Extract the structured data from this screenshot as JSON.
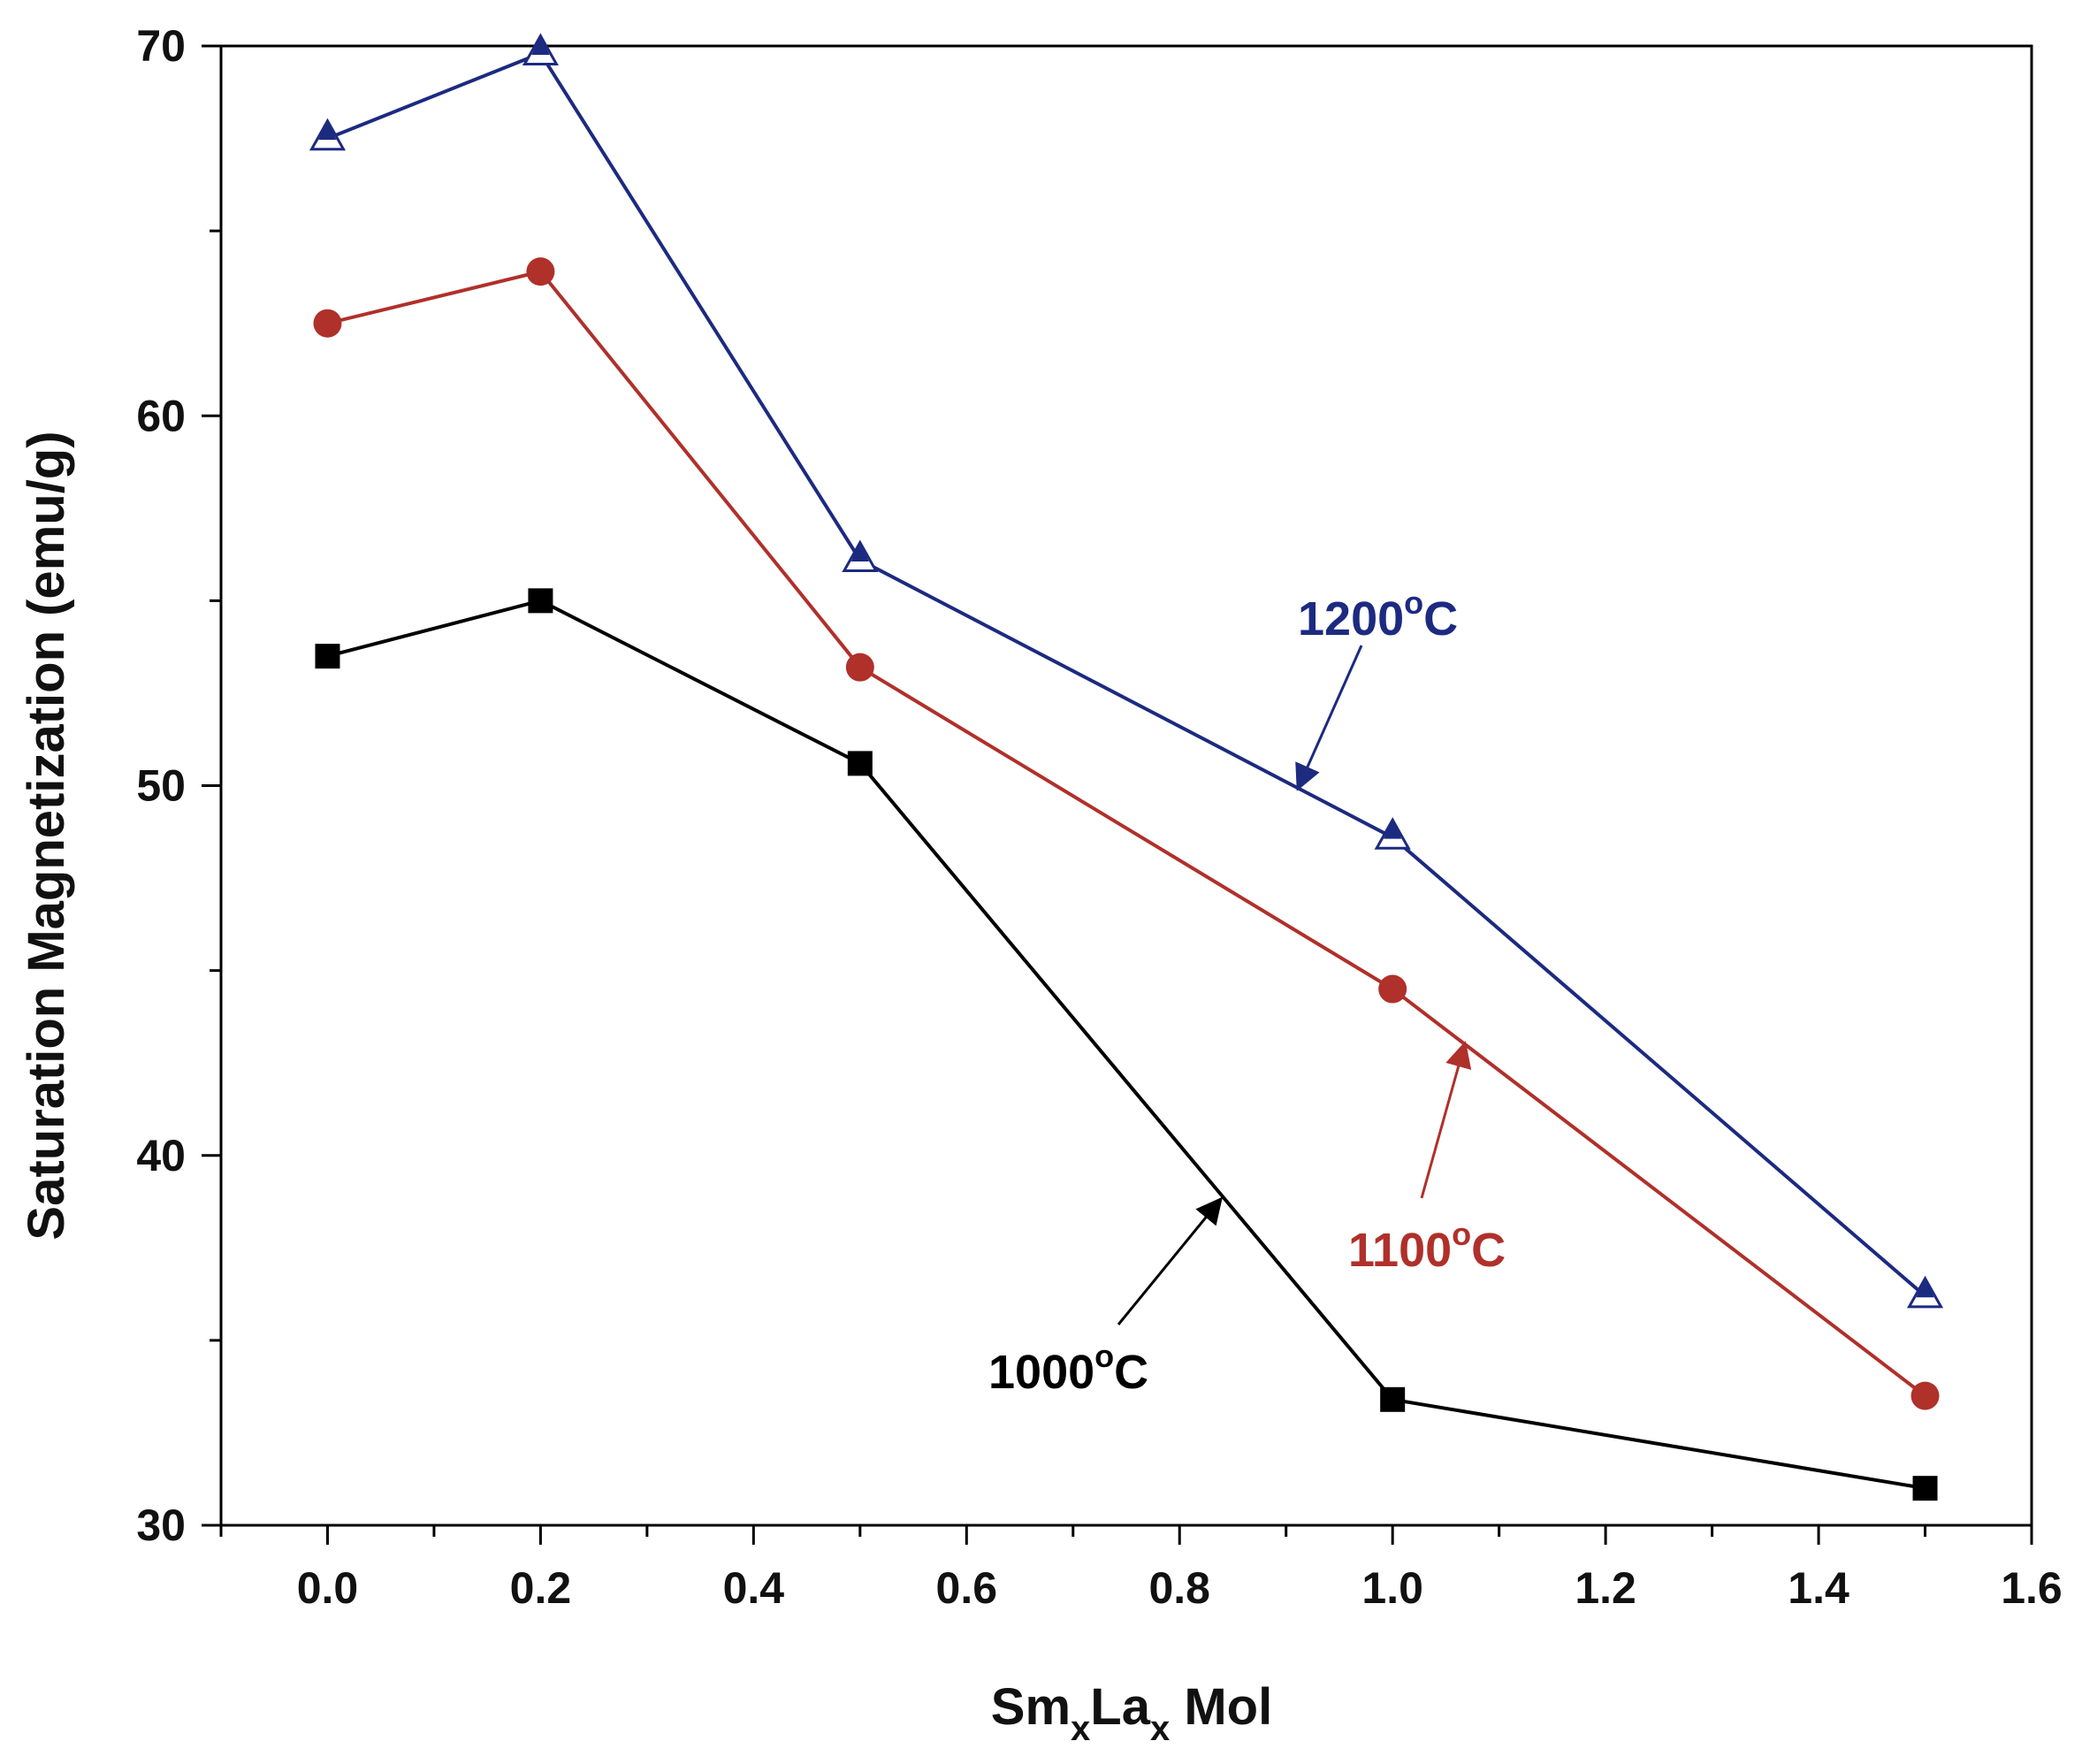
{
  "chart_data": {
    "type": "line",
    "title": "",
    "xlabel": {
      "main1": "Sm",
      "sub1": "x",
      "main2": "La",
      "sub2": "x",
      "main3": " Mol"
    },
    "ylabel": "Saturation Magnetization (emu/g)",
    "xlim": [
      -0.1,
      1.6
    ],
    "ylim": [
      30,
      70
    ],
    "x_ticks": [
      0.0,
      0.2,
      0.4,
      0.6,
      0.8,
      1.0,
      1.2,
      1.4,
      1.6
    ],
    "x_tick_labels": [
      "0.0",
      "0.2",
      "0.4",
      "0.6",
      "0.8",
      "1.0",
      "1.2",
      "1.4",
      "1.6"
    ],
    "y_ticks": [
      30,
      40,
      50,
      60,
      70
    ],
    "y_tick_labels": [
      "30",
      "40",
      "50",
      "60",
      "70"
    ],
    "grid": false,
    "series": [
      {
        "name": "1000°C",
        "label_main": "1000",
        "label_sup": "o",
        "label_tail": "C",
        "color": "#000000",
        "marker": "square",
        "x": [
          0.0,
          0.2,
          0.5,
          1.0,
          1.5
        ],
        "values": [
          53.5,
          55.0,
          50.6,
          33.4,
          31.0
        ]
      },
      {
        "name": "1100°C",
        "label_main": "1100",
        "label_sup": "o",
        "label_tail": "C",
        "color": "#b0302a",
        "marker": "circle",
        "x": [
          0.0,
          0.2,
          0.5,
          1.0,
          1.5
        ],
        "values": [
          62.5,
          63.9,
          53.2,
          44.5,
          33.5
        ]
      },
      {
        "name": "1200°C",
        "label_main": "1200",
        "label_sup": "o",
        "label_tail": "C",
        "color": "#1c2a80",
        "marker": "triangle",
        "x": [
          0.0,
          0.2,
          0.5,
          1.0,
          1.5
        ],
        "values": [
          67.5,
          69.8,
          56.1,
          48.6,
          36.2
        ]
      }
    ]
  }
}
